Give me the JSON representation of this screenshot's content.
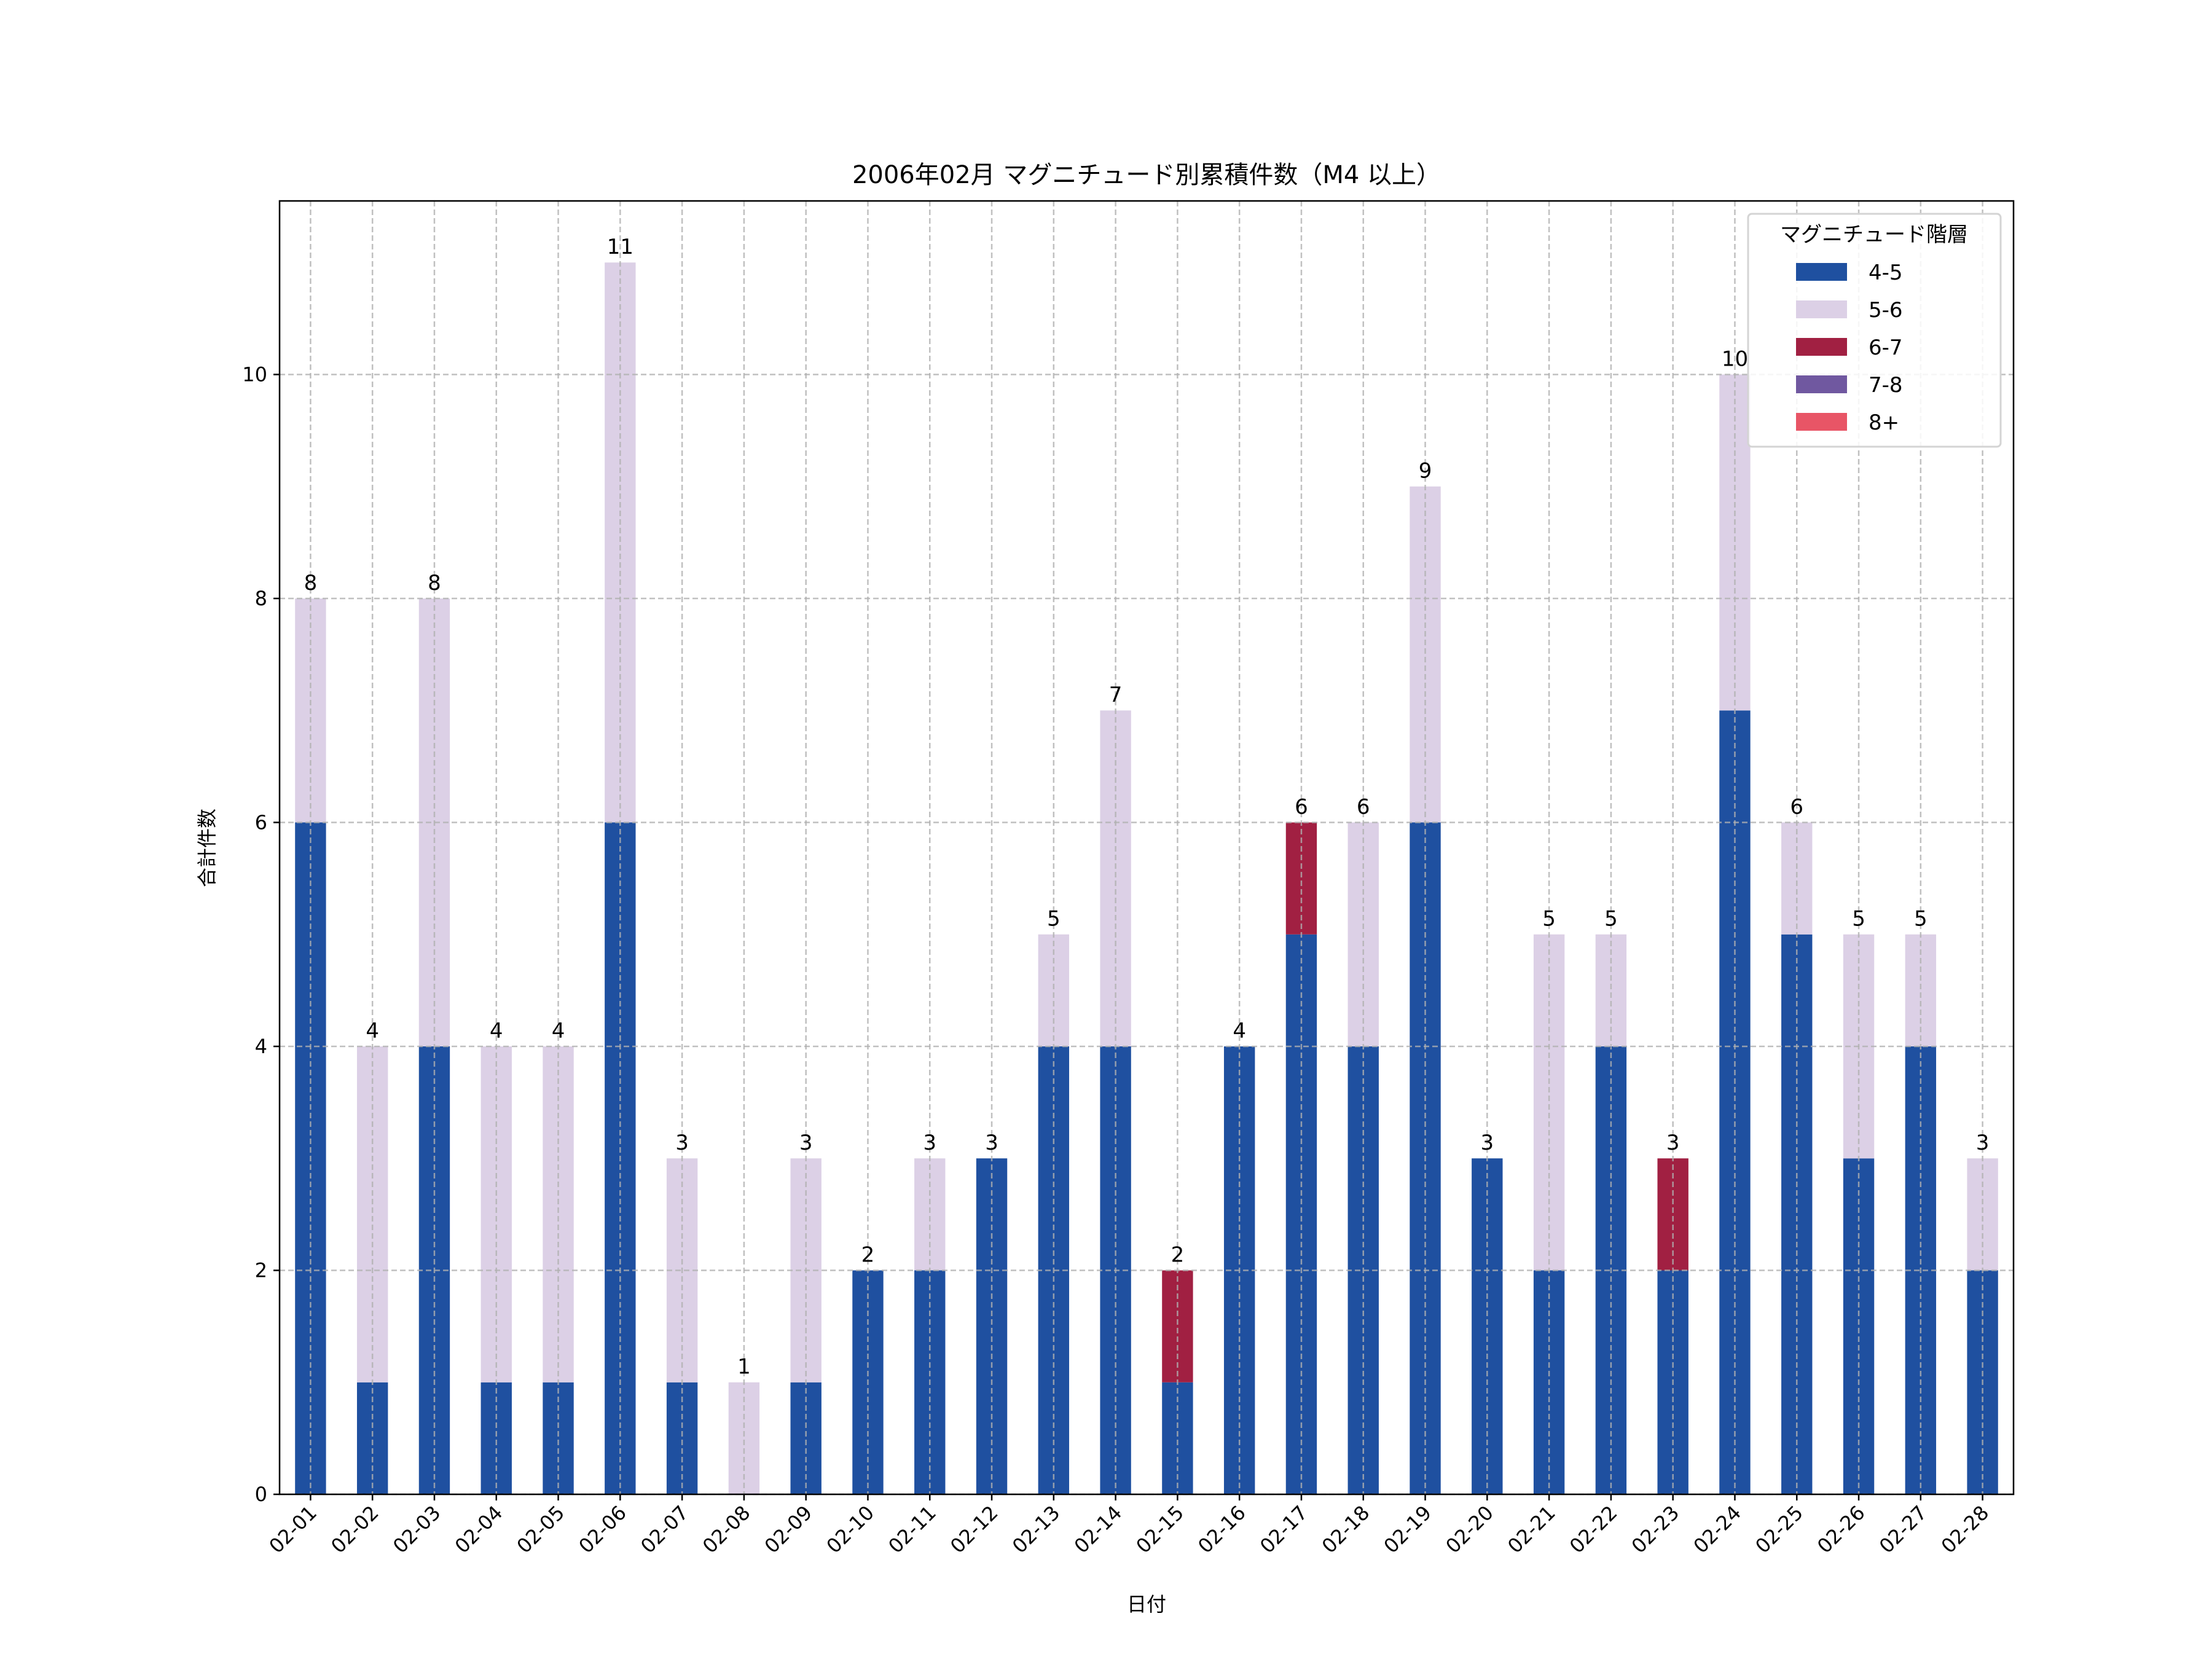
{
  "chart_data": {
    "type": "bar",
    "stacked": true,
    "title": "2006年02月 マグニチュード別累積件数（M4 以上）",
    "xlabel": "日付",
    "ylabel": "合計件数",
    "ylim": [
      0,
      11.55
    ],
    "yticks": [
      0,
      2,
      4,
      6,
      8,
      10
    ],
    "grid": true,
    "legend": {
      "title": "マグニチュード階層",
      "placement": "top-right"
    },
    "categories": [
      "02-01",
      "02-02",
      "02-03",
      "02-04",
      "02-05",
      "02-06",
      "02-07",
      "02-08",
      "02-09",
      "02-10",
      "02-11",
      "02-12",
      "02-13",
      "02-14",
      "02-15",
      "02-16",
      "02-17",
      "02-18",
      "02-19",
      "02-20",
      "02-21",
      "02-22",
      "02-23",
      "02-24",
      "02-25",
      "02-26",
      "02-27",
      "02-28"
    ],
    "series": [
      {
        "name": "4-5",
        "color": "#1f50a0",
        "values": [
          6,
          1,
          4,
          1,
          1,
          6,
          1,
          0,
          1,
          2,
          2,
          3,
          4,
          4,
          1,
          4,
          5,
          4,
          6,
          3,
          2,
          4,
          2,
          7,
          5,
          3,
          4,
          2
        ]
      },
      {
        "name": "5-6",
        "color": "#dcd0e6",
        "values": [
          2,
          3,
          4,
          3,
          3,
          5,
          2,
          1,
          2,
          0,
          1,
          0,
          1,
          3,
          0,
          0,
          0,
          2,
          3,
          0,
          3,
          1,
          0,
          3,
          1,
          2,
          1,
          1
        ]
      },
      {
        "name": "6-7",
        "color": "#a12042",
        "values": [
          0,
          0,
          0,
          0,
          0,
          0,
          0,
          0,
          0,
          0,
          0,
          0,
          0,
          0,
          1,
          0,
          1,
          0,
          0,
          0,
          0,
          0,
          1,
          0,
          0,
          0,
          0,
          0
        ]
      },
      {
        "name": "7-8",
        "color": "#7058a0",
        "values": [
          0,
          0,
          0,
          0,
          0,
          0,
          0,
          0,
          0,
          0,
          0,
          0,
          0,
          0,
          0,
          0,
          0,
          0,
          0,
          0,
          0,
          0,
          0,
          0,
          0,
          0,
          0,
          0
        ]
      },
      {
        "name": "8+",
        "color": "#e85566",
        "values": [
          0,
          0,
          0,
          0,
          0,
          0,
          0,
          0,
          0,
          0,
          0,
          0,
          0,
          0,
          0,
          0,
          0,
          0,
          0,
          0,
          0,
          0,
          0,
          0,
          0,
          0,
          0,
          0
        ]
      }
    ],
    "totals": [
      8,
      4,
      8,
      4,
      4,
      11,
      3,
      1,
      3,
      2,
      3,
      3,
      5,
      7,
      2,
      4,
      6,
      6,
      9,
      3,
      5,
      5,
      3,
      10,
      6,
      5,
      5,
      3
    ]
  }
}
